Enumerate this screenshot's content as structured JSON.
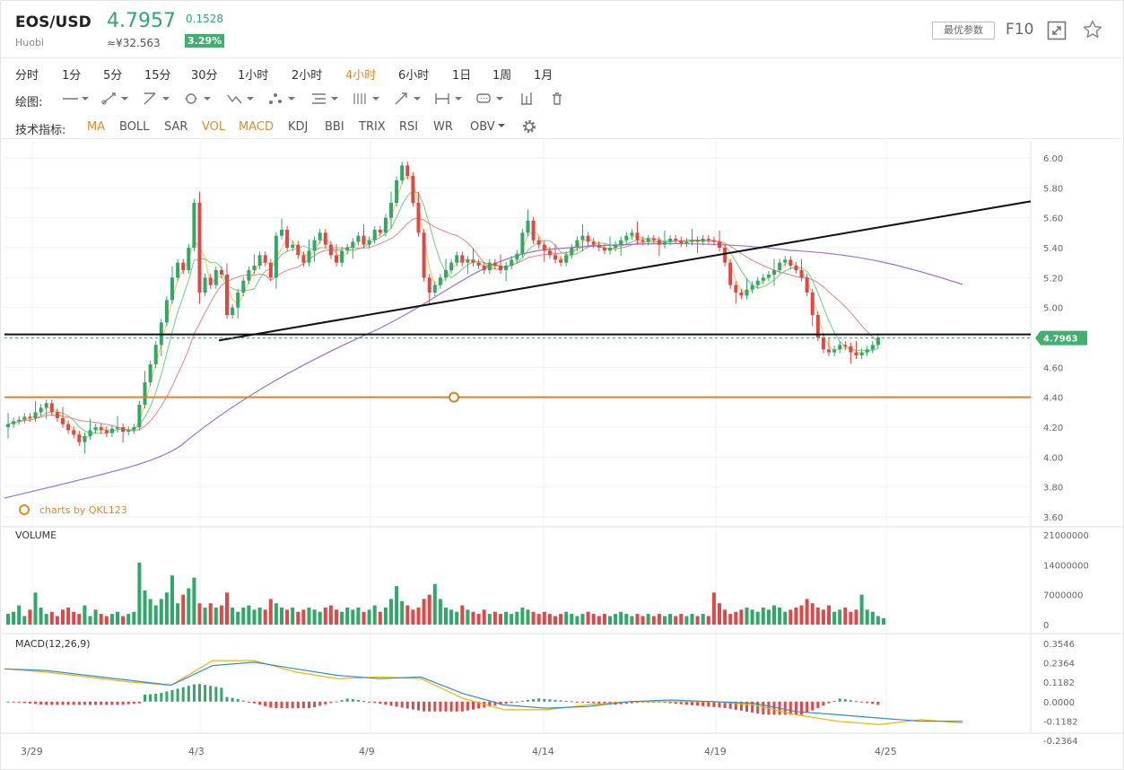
{
  "header": {
    "symbol": "EOS/USD",
    "exchange": "Huobi",
    "price": "4.7957",
    "price_cny": "≈¥32.563",
    "change": "0.1528",
    "change_pct": "3.29%",
    "params_label": "最优参数",
    "f10_label": "F10",
    "up_color": "#2fa86a",
    "down_color": "#e04848"
  },
  "periods": [
    {
      "label": "分时",
      "active": false
    },
    {
      "label": "1分",
      "active": false
    },
    {
      "label": "5分",
      "active": false
    },
    {
      "label": "15分",
      "active": false
    },
    {
      "label": "30分",
      "active": false
    },
    {
      "label": "1小时",
      "active": false
    },
    {
      "label": "2小时",
      "active": false
    },
    {
      "label": "4小时",
      "active": true
    },
    {
      "label": "6小时",
      "active": false
    },
    {
      "label": "1日",
      "active": false
    },
    {
      "label": "1周",
      "active": false
    },
    {
      "label": "1月",
      "active": false
    }
  ],
  "drawing": {
    "label": "绘图:",
    "tools": [
      "line-tool-icon",
      "ray-tool-icon",
      "trend-tool-icon",
      "circle-tool-icon",
      "wave-tool-icon",
      "pattern-tool-icon",
      "fib-tool-icon",
      "cycle-tool-icon",
      "arrow-tool-icon",
      "range-tool-icon",
      "comment-tool-icon",
      "bars-tool-icon",
      "trash-icon"
    ]
  },
  "indicators": {
    "label": "技术指标:",
    "items": [
      {
        "label": "MA",
        "active": true
      },
      {
        "label": "BOLL",
        "active": false
      },
      {
        "label": "SAR",
        "active": false
      },
      {
        "label": "VOL",
        "active": true
      },
      {
        "label": "MACD",
        "active": true
      },
      {
        "label": "KDJ",
        "active": false
      },
      {
        "label": "BBI",
        "active": false
      },
      {
        "label": "TRIX",
        "active": false
      },
      {
        "label": "RSI",
        "active": false
      },
      {
        "label": "WR",
        "active": false
      },
      {
        "label": "OBV",
        "active": false
      }
    ]
  },
  "chart_data": {
    "type": "candlestick",
    "price_axis_ticks": [
      "6.00",
      "5.80",
      "5.60",
      "5.40",
      "5.20",
      "5.00",
      "4.80",
      "4.60",
      "4.40",
      "4.20",
      "4.00",
      "3.80",
      "3.60"
    ],
    "price_range": [
      3.6,
      6.0
    ],
    "last_price_label": "4.7963",
    "watermark": "charts by QKL123",
    "volume_label": "VOLUME",
    "volume_ticks": [
      "21000000",
      "14000000",
      "7000000",
      "0"
    ],
    "volume_range": [
      0,
      21000000
    ],
    "macd_label": "MACD(12,26,9)",
    "macd_ticks": [
      "0.3546",
      "0.2364",
      "0.1182",
      "0.0000",
      "-0.1182",
      "-0.2364"
    ],
    "macd_range": [
      -0.2364,
      0.3546
    ],
    "x_labels": [
      "3/29",
      "4/3",
      "4/9",
      "4/14",
      "4/19",
      "4/25"
    ],
    "drawn_levels": {
      "horizontal_black": 4.82,
      "horizontal_orange": 4.4
    },
    "trendline": {
      "from": 4.78,
      "to": 5.71
    },
    "price_path": [
      4.22,
      4.24,
      4.25,
      4.27,
      4.26,
      4.3,
      4.33,
      4.36,
      4.3,
      4.26,
      4.22,
      4.18,
      4.15,
      4.1,
      4.14,
      4.18,
      4.2,
      4.18,
      4.16,
      4.19,
      4.2,
      4.17,
      4.18,
      4.2,
      4.35,
      4.5,
      4.62,
      4.75,
      4.9,
      5.05,
      5.2,
      5.3,
      5.25,
      5.4,
      5.7,
      5.1,
      5.2,
      5.15,
      5.25,
      5.22,
      4.95,
      5.0,
      5.1,
      5.18,
      5.25,
      5.28,
      5.35,
      5.3,
      5.2,
      5.48,
      5.52,
      5.4,
      5.42,
      5.35,
      5.3,
      5.38,
      5.45,
      5.5,
      5.42,
      5.35,
      5.3,
      5.38,
      5.4,
      5.44,
      5.48,
      5.42,
      5.45,
      5.52,
      5.5,
      5.6,
      5.7,
      5.85,
      5.95,
      5.88,
      5.7,
      5.5,
      5.2,
      5.1,
      5.15,
      5.2,
      5.25,
      5.3,
      5.35,
      5.3,
      5.32,
      5.3,
      5.28,
      5.25,
      5.3,
      5.28,
      5.25,
      5.28,
      5.32,
      5.36,
      5.5,
      5.58,
      5.45,
      5.42,
      5.38,
      5.35,
      5.32,
      5.3,
      5.35,
      5.4,
      5.45,
      5.48,
      5.44,
      5.42,
      5.4,
      5.38,
      5.4,
      5.42,
      5.45,
      5.48,
      5.5,
      5.45,
      5.44,
      5.46,
      5.45,
      5.42,
      5.44,
      5.46,
      5.45,
      5.43,
      5.44,
      5.45,
      5.44,
      5.46,
      5.45,
      5.44,
      5.4,
      5.3,
      5.15,
      5.1,
      5.08,
      5.12,
      5.15,
      5.18,
      5.2,
      5.22,
      5.25,
      5.3,
      5.32,
      5.28,
      5.25,
      5.2,
      5.1,
      4.95,
      4.8,
      4.72,
      4.7,
      4.72,
      4.75,
      4.74,
      4.7,
      4.68,
      4.7,
      4.72,
      4.75,
      4.8
    ],
    "volumes": [
      2.5,
      3.0,
      4.5,
      2.0,
      3.5,
      7.5,
      4.0,
      2.5,
      3.0,
      2.0,
      3.5,
      4.0,
      3.0,
      2.5,
      4.5,
      2.0,
      3.5,
      2.5,
      2.0,
      2.5,
      3.0,
      2.0,
      2.5,
      3.0,
      14.5,
      8.0,
      6.0,
      4.5,
      6.0,
      7.5,
      11.5,
      5.0,
      7.0,
      8.5,
      11.0,
      5.0,
      4.0,
      5.0,
      4.0,
      4.5,
      7.5,
      4.0,
      3.0,
      4.0,
      4.5,
      3.5,
      4.0,
      3.5,
      6.0,
      5.0,
      4.0,
      3.5,
      4.0,
      3.0,
      3.5,
      4.0,
      3.5,
      3.0,
      4.0,
      4.5,
      3.5,
      3.0,
      4.0,
      3.5,
      4.0,
      3.0,
      3.5,
      4.5,
      3.0,
      4.0,
      6.0,
      9.0,
      5.5,
      4.5,
      3.5,
      4.0,
      6.0,
      7.0,
      9.5,
      6.0,
      4.0,
      3.5,
      3.0,
      4.5,
      3.5,
      3.0,
      2.5,
      3.5,
      2.5,
      3.0,
      2.5,
      3.0,
      2.5,
      3.0,
      4.0,
      3.5,
      3.0,
      2.5,
      3.0,
      2.5,
      2.0,
      2.5,
      3.0,
      2.5,
      2.0,
      2.5,
      3.0,
      2.5,
      2.0,
      2.5,
      2.0,
      2.5,
      3.0,
      2.5,
      2.0,
      2.5,
      2.0,
      2.5,
      2.0,
      2.5,
      2.0,
      2.5,
      2.0,
      2.5,
      2.0,
      2.5,
      2.0,
      2.5,
      2.0,
      7.5,
      5.0,
      3.5,
      2.5,
      3.0,
      3.5,
      4.0,
      3.5,
      3.0,
      4.0,
      3.5,
      4.5,
      4.0,
      3.0,
      3.5,
      4.0,
      4.5,
      6.0,
      5.0,
      4.0,
      3.5,
      4.5,
      3.0,
      3.5,
      4.0,
      3.0,
      3.5,
      7.0,
      3.5,
      3.0,
      2.0,
      1.5
    ],
    "macd_dif": [
      0.2,
      0.18,
      0.15,
      0.12,
      0.1,
      0.25,
      0.25,
      0.18,
      0.14,
      0.15,
      0.14,
      0.02,
      -0.05,
      -0.05,
      -0.02,
      0.0,
      0.0,
      0.0,
      -0.02,
      -0.08,
      -0.12,
      -0.14,
      -0.11,
      -0.13
    ],
    "macd_dea": [
      0.2,
      0.19,
      0.16,
      0.13,
      0.1,
      0.22,
      0.24,
      0.2,
      0.16,
      0.14,
      0.15,
      0.05,
      -0.02,
      -0.04,
      -0.03,
      0.0,
      0.01,
      0.0,
      -0.01,
      -0.06,
      -0.08,
      -0.1,
      -0.12,
      -0.12
    ]
  }
}
